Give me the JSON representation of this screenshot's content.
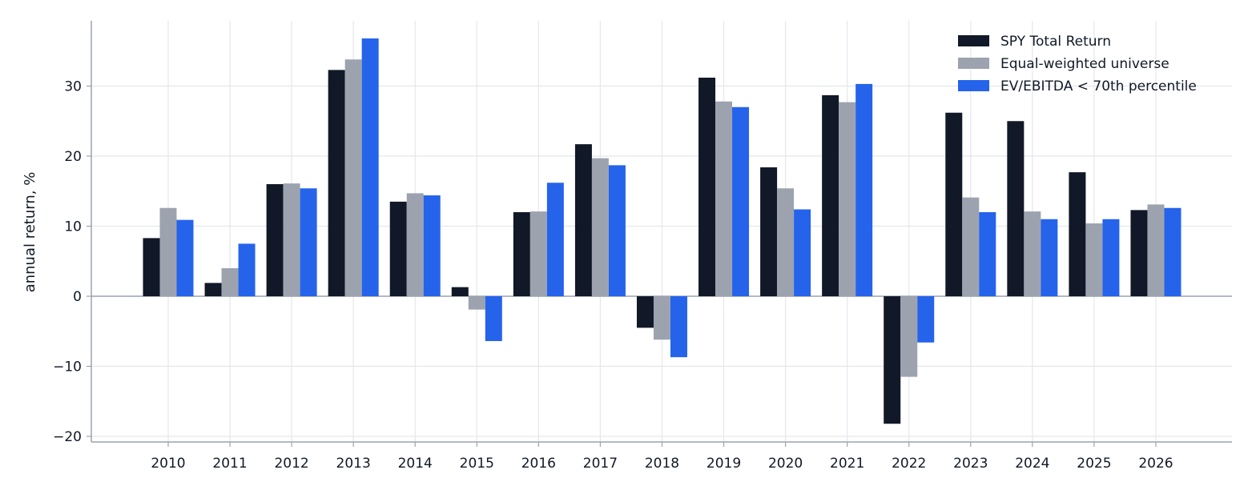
{
  "chart_data": {
    "type": "bar",
    "title": "",
    "xlabel": "",
    "ylabel": "annual return, %",
    "categories": [
      "2010",
      "2011",
      "2012",
      "2013",
      "2014",
      "2015",
      "2016",
      "2017",
      "2018",
      "2019",
      "2020",
      "2021",
      "2022",
      "2023",
      "2024",
      "2025",
      "2026"
    ],
    "series": [
      {
        "name": "SPY Total Return",
        "color": "#111827",
        "values": [
          8.3,
          1.9,
          16.0,
          32.3,
          13.5,
          1.3,
          12.0,
          21.7,
          -4.5,
          31.2,
          18.4,
          28.7,
          -18.2,
          26.2,
          25.0,
          17.7,
          12.3
        ]
      },
      {
        "name": "Equal-weighted universe",
        "color": "#9ca3af",
        "values": [
          12.6,
          4.0,
          16.1,
          33.8,
          14.7,
          -1.9,
          12.1,
          19.7,
          -6.2,
          27.8,
          15.4,
          27.7,
          -11.5,
          14.1,
          12.1,
          10.4,
          13.1
        ]
      },
      {
        "name": "EV/EBITDA < 70th percentile",
        "color": "#2563eb",
        "values": [
          10.9,
          7.5,
          15.4,
          36.8,
          14.4,
          -6.4,
          16.2,
          18.7,
          -8.7,
          27.0,
          12.4,
          30.3,
          -6.6,
          12.0,
          11.0,
          11.0,
          12.6
        ]
      }
    ],
    "ylim": [
      -21,
      39
    ],
    "yticks": [
      -20,
      -10,
      0,
      10,
      20,
      30
    ],
    "ytick_labels": [
      "−20",
      "−10",
      "0",
      "10",
      "20",
      "30"
    ],
    "grid": true,
    "legend_position": "top-right",
    "grid_color": "#e5e7eb",
    "axis_color": "#9ca3af"
  }
}
